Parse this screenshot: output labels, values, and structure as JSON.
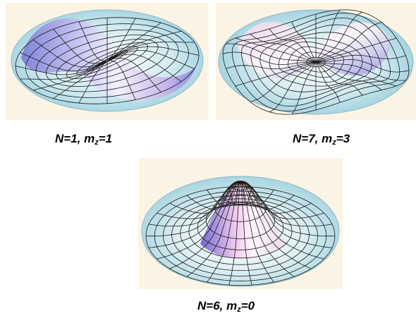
{
  "panels": [
    {
      "id": "n1-m1",
      "caption": {
        "n_part": "N=1, m",
        "sub": "z",
        "value_part": "=1"
      },
      "surface": {
        "radial_nodes": 0,
        "angular_lobes": 2,
        "lobe_color": "#9b94e6",
        "highlight": "#ffffff"
      }
    },
    {
      "id": "n7-m3",
      "caption": {
        "n_part": "N=7, m",
        "sub": "z",
        "value_part": "=3"
      },
      "surface": {
        "radial_nodes": 2,
        "angular_lobes": 6,
        "lobe_color": "#f0c4e4",
        "highlight": "#ffffff"
      }
    },
    {
      "id": "n6-m0",
      "caption": {
        "n_part": "N=6, m",
        "sub": "z",
        "value_part": "=0"
      },
      "surface": {
        "radial_nodes": 3,
        "angular_lobes": 0,
        "lobe_color": "#c9a3ea",
        "highlight": "#ffffff"
      }
    }
  ],
  "colors": {
    "panel_background": "#fbf4e4",
    "disk_rim": "#bfe2e8",
    "mesh_line": "#1a1a1a",
    "shading_dark": "#8a86d8"
  }
}
